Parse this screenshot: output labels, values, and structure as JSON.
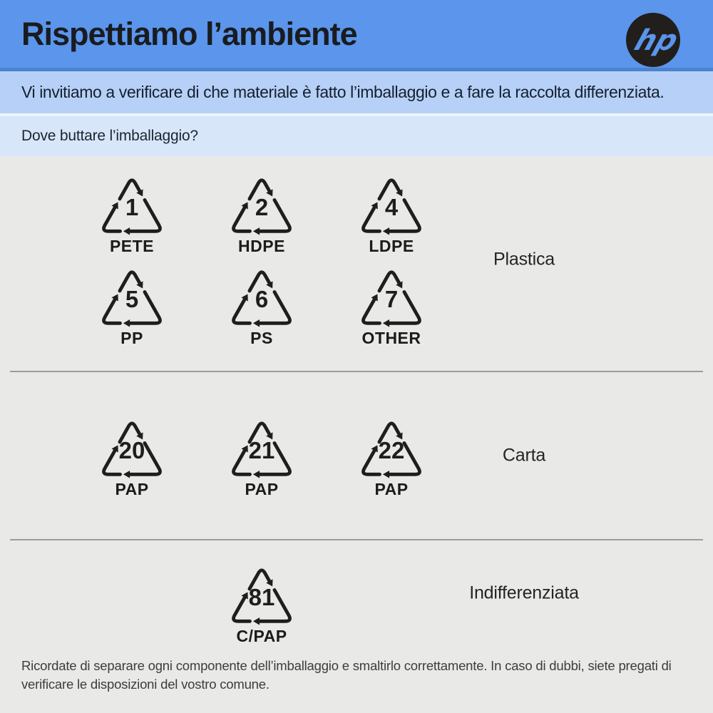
{
  "header": {
    "title": "Rispettiamo l’ambiente",
    "logo_text": "hp"
  },
  "banner": {
    "text": "Vi invitiamo a verificare di che materiale è fatto l’imballaggio e a fare la raccolta differenziata."
  },
  "question": {
    "text": "Dove buttare l’imballaggio?"
  },
  "categories": [
    {
      "label": "Plastica",
      "rows": [
        [
          {
            "code": "1",
            "material": "PETE"
          },
          {
            "code": "2",
            "material": "HDPE"
          },
          {
            "code": "4",
            "material": "LDPE"
          }
        ],
        [
          {
            "code": "5",
            "material": "PP"
          },
          {
            "code": "6",
            "material": "PS"
          },
          {
            "code": "7",
            "material": "OTHER"
          }
        ]
      ]
    },
    {
      "label": "Carta",
      "rows": [
        [
          {
            "code": "20",
            "material": "PAP"
          },
          {
            "code": "21",
            "material": "PAP"
          },
          {
            "code": "22",
            "material": "PAP"
          }
        ]
      ]
    },
    {
      "label": "Indifferenziata",
      "rows": [
        [
          {
            "code": "81",
            "material": "C/PAP",
            "column": 2
          }
        ]
      ]
    }
  ],
  "footer": {
    "text": "Ricordate di separare ogni componente dell’imballaggio e smaltirlo correttamente. In caso di dubbi, siete pregati di verificare le disposizioni del vostro comune."
  },
  "colors": {
    "header_bg": "#5b95ec",
    "header_edge": "#4c82d2",
    "subtitle_bg": "#b7d0f7",
    "question_bg": "#d8e6fa",
    "main_bg": "#e9e9e7",
    "ink": "#1e1e1e",
    "divider": "#9c9c9c"
  }
}
